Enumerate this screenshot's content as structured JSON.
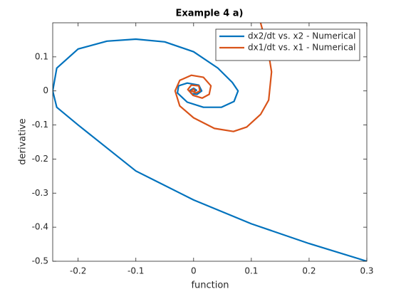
{
  "chart_data": {
    "type": "line",
    "title": "Example 4 a)",
    "x_label": "function",
    "y_label": "derivative",
    "xlim": [
      -0.244,
      0.3
    ],
    "ylim": [
      -0.5,
      0.2
    ],
    "xticks": [
      -0.2,
      -0.1,
      0,
      0.1,
      0.2,
      0.3
    ],
    "yticks": [
      0.1,
      0,
      -0.1,
      -0.2,
      -0.3,
      -0.4,
      -0.5
    ],
    "legend": "upper right",
    "series": [
      {
        "name": "dx2/dt vs. x2 - Numerical",
        "color": "#0072bd",
        "x": [
          0.3,
          0.2,
          0.1,
          0,
          -0.1,
          -0.2,
          -0.237,
          -0.244,
          -0.237,
          -0.2,
          -0.15,
          -0.1,
          -0.05,
          0,
          0.042,
          0.067,
          0.077,
          0.07,
          0.048,
          0.017,
          -0.011,
          -0.028,
          -0.026,
          -0.011,
          0.009,
          0.014,
          0.006,
          -0.004,
          -0.006,
          0,
          0.005,
          0.001,
          0
        ],
        "values": [
          -0.5,
          -0.448,
          -0.39,
          -0.32,
          -0.235,
          -0.1,
          -0.048,
          0,
          0.067,
          0.123,
          0.146,
          0.152,
          0.144,
          0.115,
          0.067,
          0.025,
          0,
          -0.031,
          -0.048,
          -0.048,
          -0.033,
          -0.006,
          0.015,
          0.023,
          0.017,
          0,
          -0.01,
          -0.008,
          0.002,
          0.008,
          0.002,
          -0.002,
          0
        ]
      },
      {
        "name": "dx1/dt vs. x1 - Numerical",
        "color": "#d95319",
        "x": [
          0.116,
          0.129,
          0.135,
          0.13,
          0.116,
          0.092,
          0.069,
          0.036,
          0,
          -0.024,
          -0.032,
          -0.024,
          -0.004,
          0.017,
          0.03,
          0.027,
          0.015,
          -0.001,
          -0.01,
          -0.004,
          0.009,
          0.011,
          0.004,
          -0.004,
          0,
          0.002,
          0
        ],
        "values": [
          0.2,
          0.119,
          0.056,
          -0.027,
          -0.069,
          -0.106,
          -0.119,
          -0.11,
          -0.079,
          -0.044,
          0,
          0.031,
          0.046,
          0.04,
          0.015,
          -0.01,
          -0.021,
          -0.013,
          0.004,
          0.017,
          0.015,
          0,
          -0.006,
          0,
          0.006,
          0,
          0
        ]
      }
    ]
  }
}
